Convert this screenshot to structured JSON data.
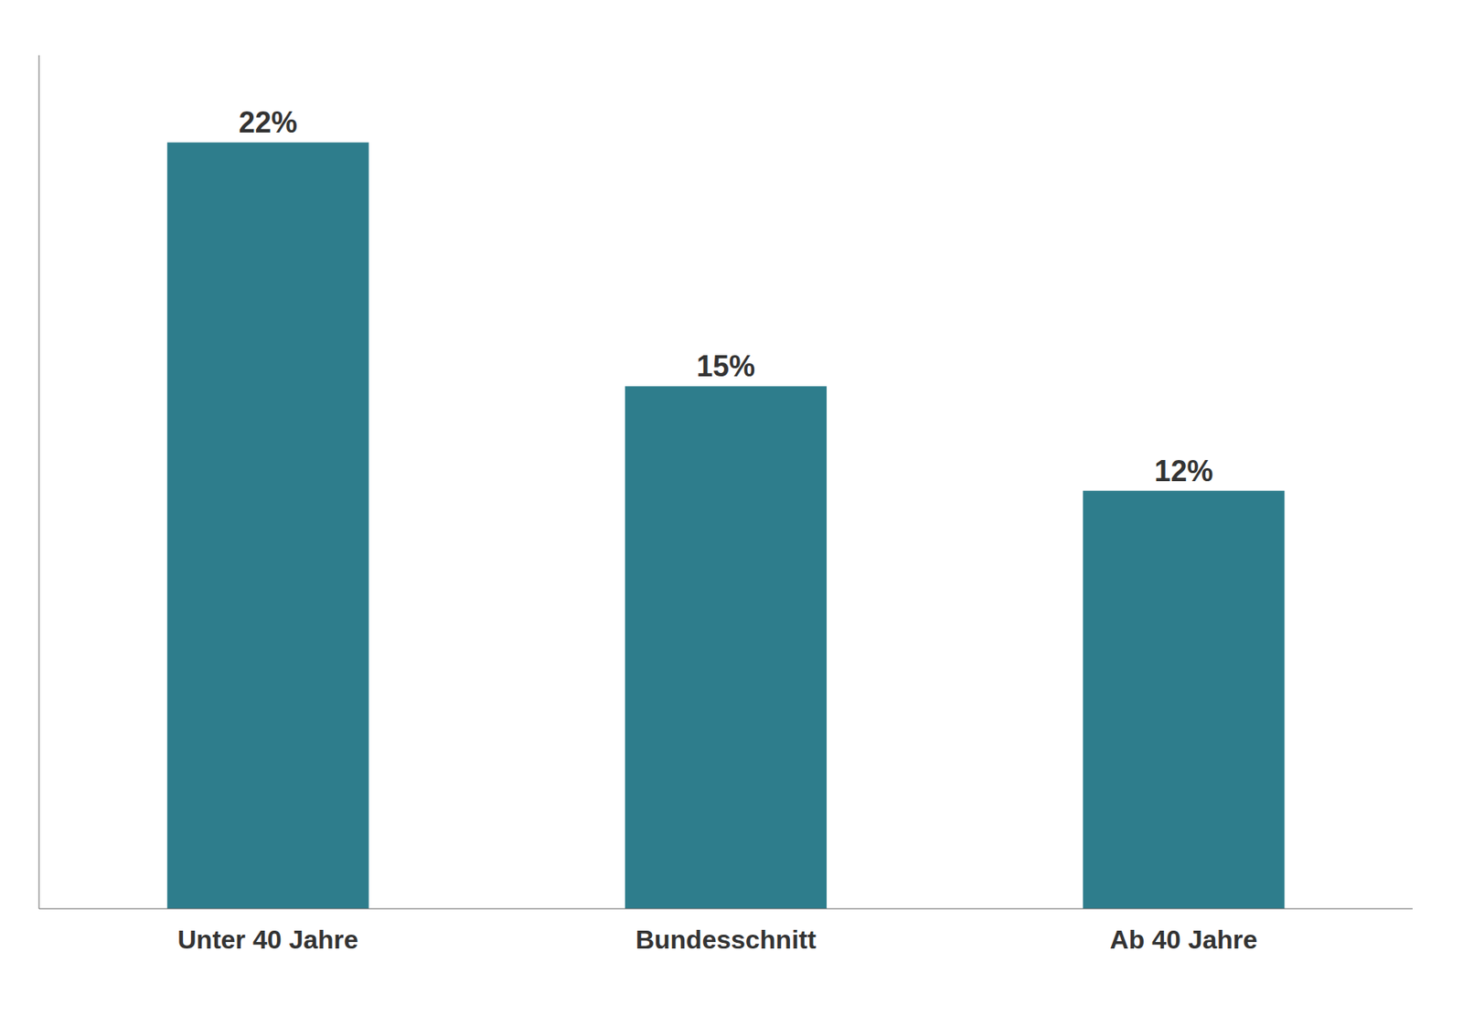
{
  "chart_data": {
    "type": "bar",
    "categories": [
      "Unter 40 Jahre",
      "Bundesschnitt",
      "Ab 40 Jahre"
    ],
    "values": [
      22,
      15,
      12
    ],
    "value_labels": [
      "22%",
      "15%",
      "12%"
    ],
    "color": "#2e7d8c",
    "ylim": [
      0,
      24.5
    ],
    "data_labels": true,
    "tick_labels": "x",
    "grid": false
  }
}
